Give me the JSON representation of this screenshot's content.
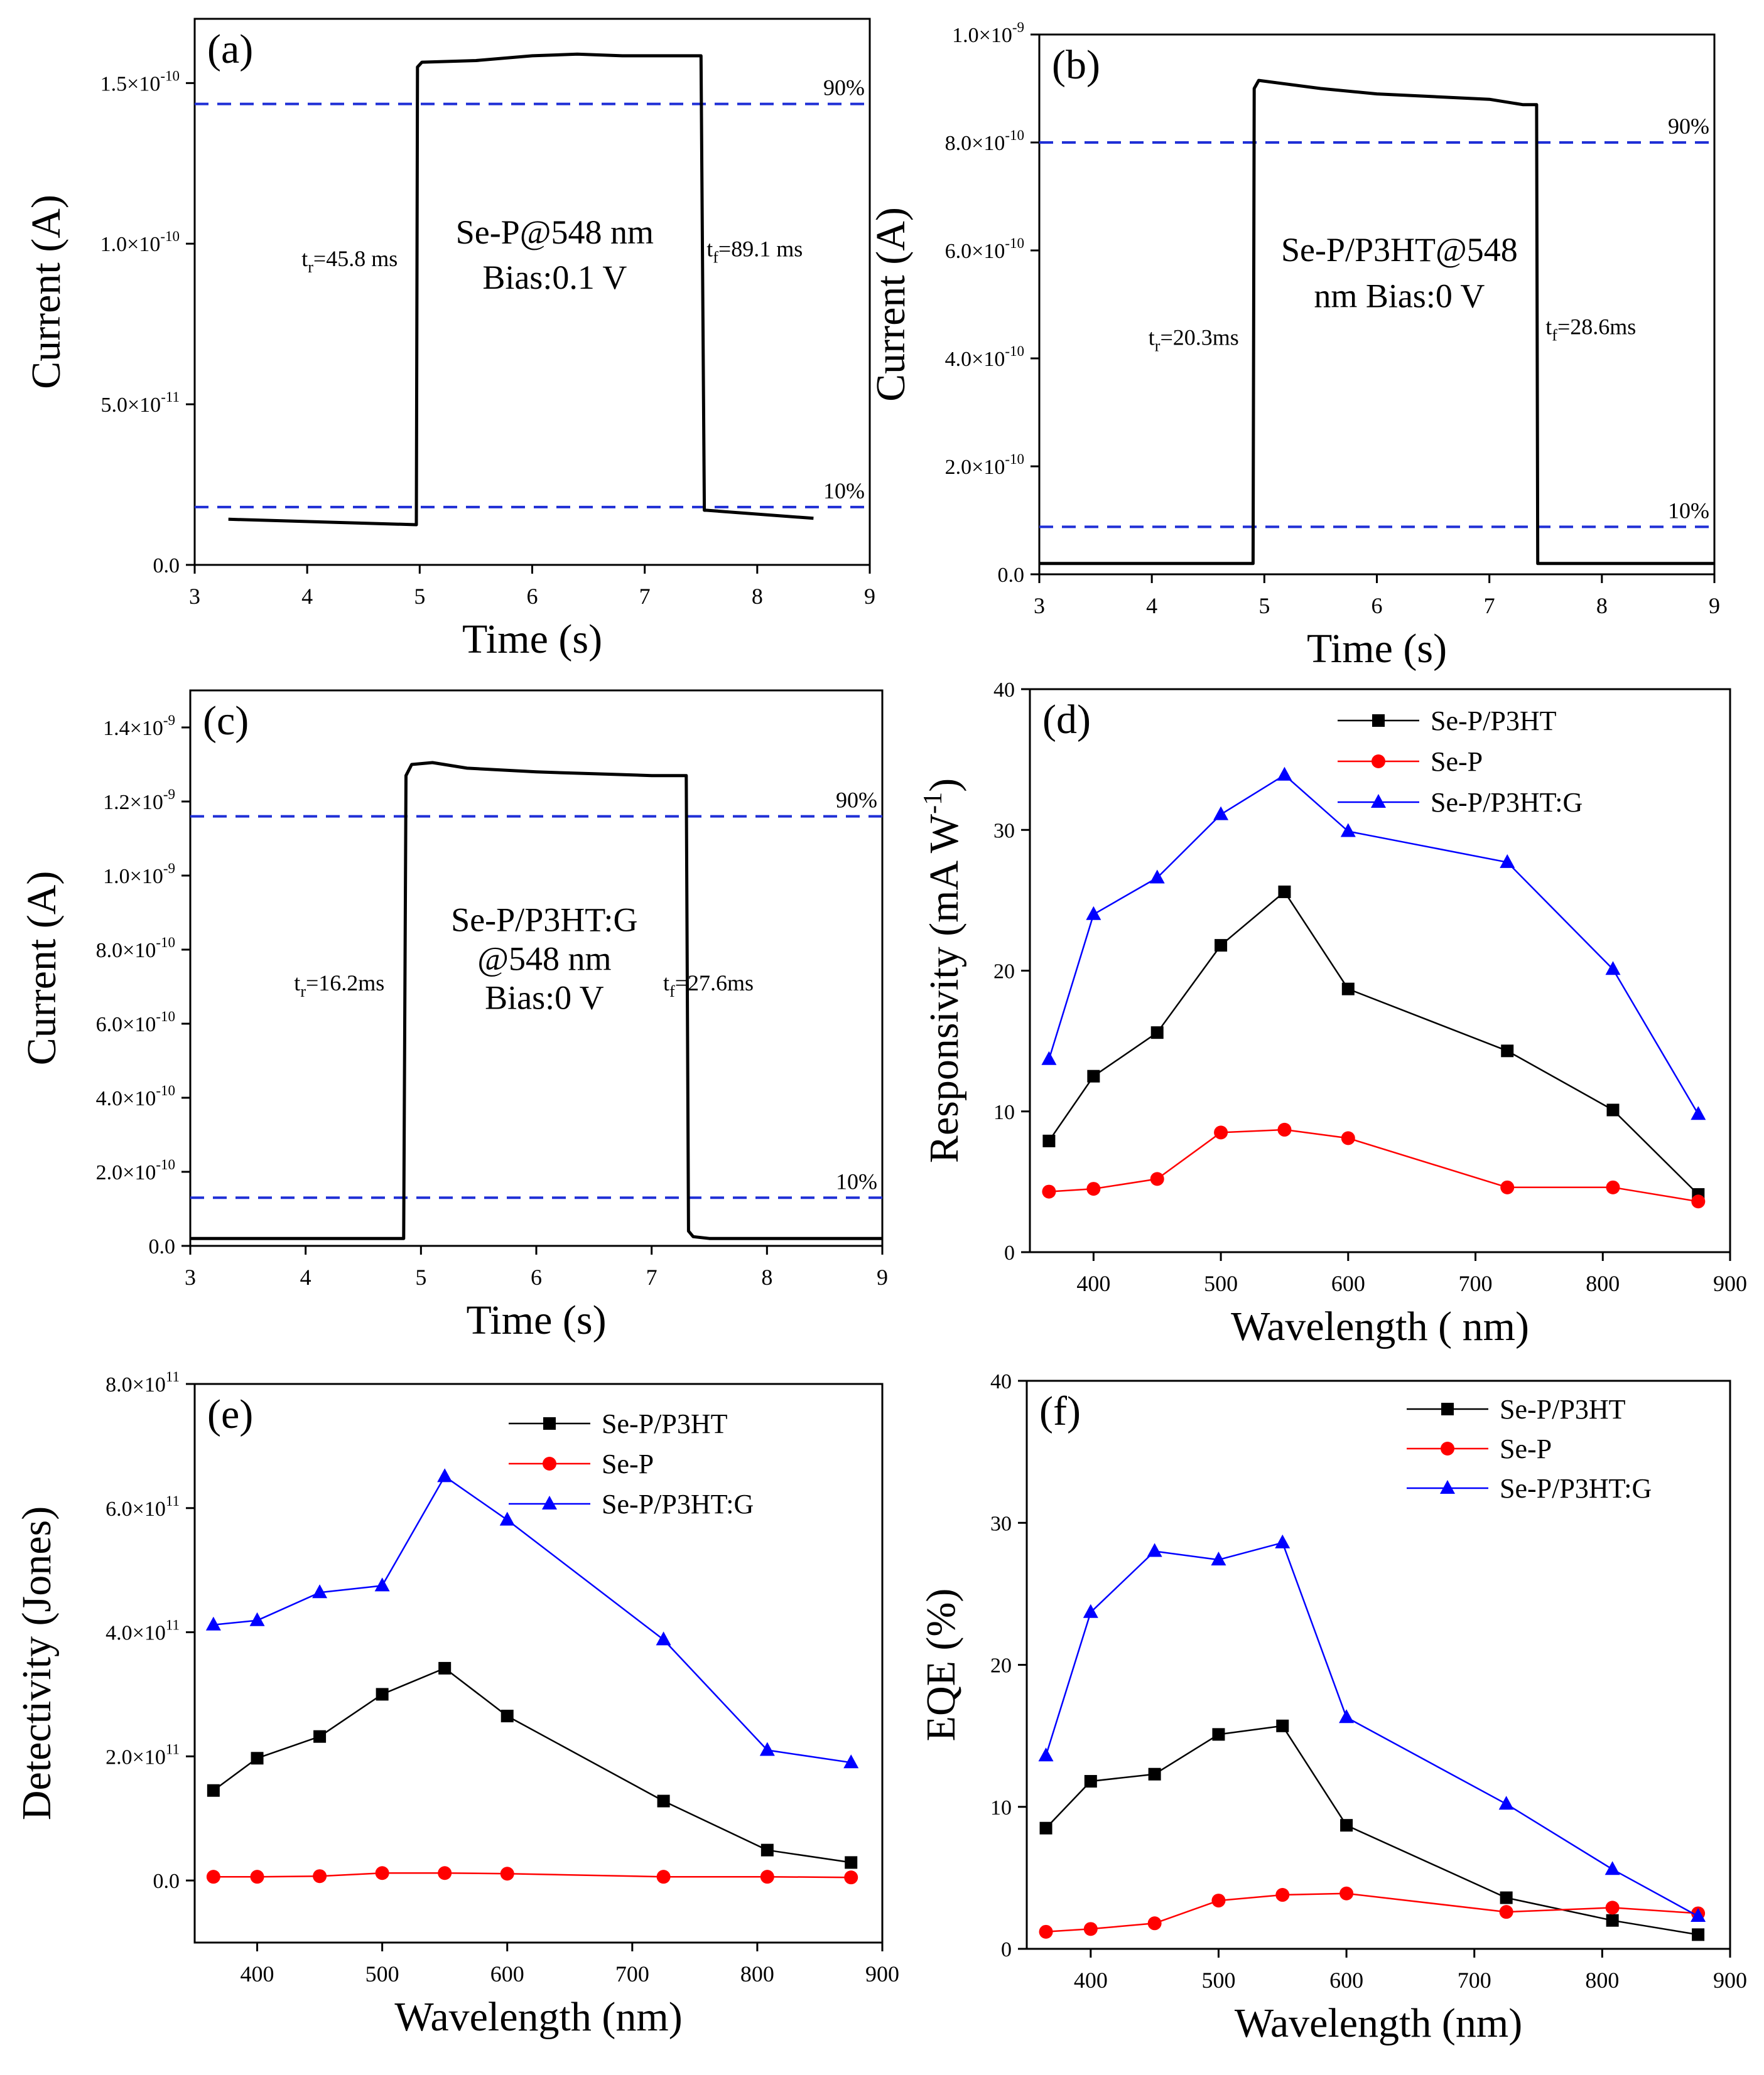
{
  "figure": {
    "colors": {
      "black": "#000000",
      "red": "#ff0000",
      "blue": "#0000ff",
      "ref_line": "#1f2fd6"
    }
  },
  "chart_data": [
    {
      "id": "a",
      "type": "line",
      "panel_label": "(a)",
      "xlabel": "Time (s)",
      "ylabel": "Current (A)",
      "xlim": [
        3,
        9
      ],
      "ylim": [
        0,
        1.7e-10
      ],
      "xticks": [
        3,
        4,
        5,
        6,
        7,
        8,
        9
      ],
      "yticks": [
        {
          "v": 0,
          "m": "0.0",
          "e": ""
        },
        {
          "v": 5e-11,
          "m": "5.0×10",
          "e": "-11"
        },
        {
          "v": 1e-10,
          "m": "1.0×10",
          "e": "-10"
        },
        {
          "v": 1.5e-10,
          "m": "1.5×10",
          "e": "-10"
        }
      ],
      "ref_lines": [
        {
          "value": 1.435e-10,
          "label": "90%"
        },
        {
          "value": 1.8e-11,
          "label": "10%"
        }
      ],
      "annotations": [
        {
          "text": "Se-P@548 nm",
          "x": 6.2,
          "y": 1e-10,
          "anchor": "middle",
          "size": 54
        },
        {
          "text": "Bias:0.1 V",
          "x": 6.2,
          "y": 8.6e-11,
          "anchor": "middle",
          "size": 54
        }
      ],
      "times": [
        {
          "sub": "r",
          "value": "=45.8 ms",
          "x": 3.95,
          "y": 9.3e-11
        },
        {
          "sub": "f",
          "value": "=89.1 ms",
          "x": 7.55,
          "y": 9.6e-11
        }
      ],
      "series": [
        {
          "name": "photocurrent",
          "color": "#000000",
          "x": [
            3.3,
            4.97,
            4.98,
            5.02,
            5.5,
            6.0,
            6.4,
            6.8,
            7.3,
            7.5,
            7.53,
            7.55,
            8.5
          ],
          "y": [
            1.42e-11,
            1.25e-11,
            1.55e-10,
            1.565e-10,
            1.57e-10,
            1.585e-10,
            1.59e-10,
            1.585e-10,
            1.585e-10,
            1.585e-10,
            1.7e-11,
            1.7e-11,
            1.45e-11
          ]
        }
      ]
    },
    {
      "id": "b",
      "type": "line",
      "panel_label": "(b)",
      "xlabel": "Time (s)",
      "ylabel": "Current (A)",
      "xlim": [
        3,
        9
      ],
      "ylim": [
        0,
        1e-09
      ],
      "xticks": [
        3,
        4,
        5,
        6,
        7,
        8,
        9
      ],
      "yticks": [
        {
          "v": 0,
          "m": "0.0",
          "e": ""
        },
        {
          "v": 2e-10,
          "m": "2.0×10",
          "e": "-10"
        },
        {
          "v": 4e-10,
          "m": "4.0×10",
          "e": "-10"
        },
        {
          "v": 6e-10,
          "m": "6.0×10",
          "e": "-10"
        },
        {
          "v": 8e-10,
          "m": "8.0×10",
          "e": "-10"
        },
        {
          "v": 1e-09,
          "m": "1.0×10",
          "e": "-9"
        }
      ],
      "ref_lines": [
        {
          "value": 8e-10,
          "label": "90%"
        },
        {
          "value": 8.8e-11,
          "label": "10%"
        }
      ],
      "annotations": [
        {
          "text": "Se-P/P3HT@548",
          "x": 6.2,
          "y": 5.8e-10,
          "anchor": "middle",
          "size": 54
        },
        {
          "text": "nm Bias:0 V",
          "x": 6.2,
          "y": 4.95e-10,
          "anchor": "middle",
          "size": 54
        }
      ],
      "times": [
        {
          "sub": "r",
          "value": "=20.3ms",
          "x": 3.97,
          "y": 4.25e-10
        },
        {
          "sub": "f",
          "value": "=28.6ms",
          "x": 7.5,
          "y": 4.45e-10
        }
      ],
      "series": [
        {
          "name": "photocurrent",
          "color": "#000000",
          "x": [
            3.0,
            4.9,
            4.91,
            4.95,
            5.5,
            6.0,
            6.5,
            7.0,
            7.3,
            7.42,
            7.43,
            9.0
          ],
          "y": [
            2e-11,
            2e-11,
            9e-10,
            9.15e-10,
            9e-10,
            8.9e-10,
            8.85e-10,
            8.8e-10,
            8.7e-10,
            8.7e-10,
            2e-11,
            2e-11
          ]
        }
      ]
    },
    {
      "id": "c",
      "type": "line",
      "panel_label": "(c)",
      "xlabel": "Time (s)",
      "ylabel": "Current (A)",
      "xlim": [
        3,
        9
      ],
      "ylim": [
        0,
        1.5e-09
      ],
      "xticks": [
        3,
        4,
        5,
        6,
        7,
        8,
        9
      ],
      "yticks": [
        {
          "v": 0,
          "m": "0.0",
          "e": ""
        },
        {
          "v": 2e-10,
          "m": "2.0×10",
          "e": "-10"
        },
        {
          "v": 4e-10,
          "m": "4.0×10",
          "e": "-10"
        },
        {
          "v": 6e-10,
          "m": "6.0×10",
          "e": "-10"
        },
        {
          "v": 8e-10,
          "m": "8.0×10",
          "e": "-10"
        },
        {
          "v": 1e-09,
          "m": "1.0×10",
          "e": "-9"
        },
        {
          "v": 1.2e-09,
          "m": "1.2×10",
          "e": "-9"
        },
        {
          "v": 1.4e-09,
          "m": "1.4×10",
          "e": "-9"
        }
      ],
      "ref_lines": [
        {
          "value": 1.16e-09,
          "label": "90%"
        },
        {
          "value": 1.3e-10,
          "label": "10%"
        }
      ],
      "annotations": [
        {
          "text": "Se-P/P3HT:G",
          "x": 6.07,
          "y": 8.5e-10,
          "anchor": "middle",
          "size": 54
        },
        {
          "text": "@548 nm",
          "x": 6.07,
          "y": 7.45e-10,
          "anchor": "middle",
          "size": 54
        },
        {
          "text": "Bias:0 V",
          "x": 6.07,
          "y": 6.4e-10,
          "anchor": "middle",
          "size": 54
        }
      ],
      "times": [
        {
          "sub": "r",
          "value": "=16.2ms",
          "x": 3.9,
          "y": 6.9e-10
        },
        {
          "sub": "f",
          "value": "=27.6ms",
          "x": 7.1,
          "y": 6.9e-10
        }
      ],
      "series": [
        {
          "name": "photocurrent",
          "color": "#000000",
          "x": [
            3.0,
            4.85,
            4.87,
            4.92,
            5.1,
            5.4,
            6.0,
            6.5,
            7.0,
            7.3,
            7.32,
            7.36,
            7.5,
            9.0
          ],
          "y": [
            2e-11,
            2e-11,
            1.27e-09,
            1.3e-09,
            1.305e-09,
            1.29e-09,
            1.28e-09,
            1.275e-09,
            1.27e-09,
            1.27e-09,
            4e-11,
            2.5e-11,
            2e-11,
            2e-11
          ]
        }
      ]
    },
    {
      "id": "d",
      "type": "line",
      "panel_label": "(d)",
      "xlabel": "Wavelength ( nm)",
      "ylabel": "Responsivity (mA W",
      "ylabel_sup": "-1",
      "ylabel_tail": ")",
      "xlim": [
        350,
        900
      ],
      "ylim": [
        0,
        40
      ],
      "xticks": [
        400,
        500,
        600,
        700,
        800,
        900
      ],
      "yticks": [
        {
          "v": 0,
          "m": "0",
          "e": ""
        },
        {
          "v": 10,
          "m": "10",
          "e": ""
        },
        {
          "v": 20,
          "m": "20",
          "e": ""
        },
        {
          "v": 30,
          "m": "30",
          "e": ""
        },
        {
          "v": 40,
          "m": "40",
          "e": ""
        }
      ],
      "x": [
        365,
        400,
        450,
        500,
        550,
        600,
        725,
        808,
        875
      ],
      "series": [
        {
          "name": "Se-P/P3HT",
          "marker": "square",
          "color": "#000000",
          "values": [
            7.9,
            12.5,
            15.6,
            21.8,
            25.6,
            18.7,
            14.3,
            10.1,
            4.1
          ]
        },
        {
          "name": "Se-P",
          "marker": "circle",
          "color": "#ff0000",
          "values": [
            4.3,
            4.5,
            5.2,
            8.5,
            8.7,
            8.1,
            4.6,
            4.6,
            3.6
          ]
        },
        {
          "name": "Se-P/P3HT:G",
          "marker": "triangle",
          "color": "#0000ff",
          "values": [
            13.7,
            24.0,
            26.6,
            31.1,
            33.9,
            29.9,
            27.7,
            20.1,
            9.8
          ]
        }
      ]
    },
    {
      "id": "e",
      "type": "line",
      "panel_label": "(e)",
      "xlabel": "Wavelength (nm)",
      "ylabel": "Detectivity (Jones)",
      "xlim": [
        350,
        900
      ],
      "ylim": [
        -100000000000.0,
        800000000000.0
      ],
      "xticks": [
        400,
        500,
        600,
        700,
        800,
        900
      ],
      "yticks": [
        {
          "v": 0,
          "m": "0.0",
          "e": ""
        },
        {
          "v": 200000000000.0,
          "m": "2.0×10",
          "e": "11"
        },
        {
          "v": 400000000000.0,
          "m": "4.0×10",
          "e": "11"
        },
        {
          "v": 600000000000.0,
          "m": "6.0×10",
          "e": "11"
        },
        {
          "v": 800000000000.0,
          "m": "8.0×10",
          "e": "11"
        }
      ],
      "x": [
        365,
        400,
        450,
        500,
        550,
        600,
        725,
        808,
        875
      ],
      "series": [
        {
          "name": "Se-P/P3HT",
          "marker": "square",
          "color": "#000000",
          "values": [
            145000000000.0,
            197000000000.0,
            232000000000.0,
            300000000000.0,
            342000000000.0,
            265000000000.0,
            128000000000.0,
            49000000000.0,
            29000000000.0
          ]
        },
        {
          "name": "Se-P",
          "marker": "circle",
          "color": "#ff0000",
          "values": [
            6000000000.0,
            6000000000.0,
            7000000000.0,
            12000000000.0,
            12000000000.0,
            11000000000.0,
            6000000000.0,
            6000000000.0,
            5000000000.0
          ]
        },
        {
          "name": "Se-P/P3HT:G",
          "marker": "triangle",
          "color": "#0000ff",
          "values": [
            412000000000.0,
            419000000000.0,
            464000000000.0,
            475000000000.0,
            651000000000.0,
            581000000000.0,
            388000000000.0,
            210000000000.0,
            190000000000.0
          ]
        }
      ]
    },
    {
      "id": "f",
      "type": "line",
      "panel_label": "(f)",
      "xlabel": "Wavelength (nm)",
      "ylabel": "EQE (%)",
      "xlim": [
        350,
        900
      ],
      "ylim": [
        0,
        40
      ],
      "xticks": [
        400,
        500,
        600,
        700,
        800,
        900
      ],
      "yticks": [
        {
          "v": 0,
          "m": "0",
          "e": ""
        },
        {
          "v": 10,
          "m": "10",
          "e": ""
        },
        {
          "v": 20,
          "m": "20",
          "e": ""
        },
        {
          "v": 30,
          "m": "30",
          "e": ""
        },
        {
          "v": 40,
          "m": "40",
          "e": ""
        }
      ],
      "x": [
        365,
        400,
        450,
        500,
        550,
        600,
        725,
        808,
        875
      ],
      "series": [
        {
          "name": "Se-P/P3HT",
          "marker": "square",
          "color": "#000000",
          "values": [
            8.5,
            11.8,
            12.3,
            15.1,
            15.7,
            8.7,
            3.6,
            2.0,
            1.0
          ]
        },
        {
          "name": "Se-P",
          "marker": "circle",
          "color": "#ff0000",
          "values": [
            1.2,
            1.4,
            1.8,
            3.4,
            3.8,
            3.9,
            2.6,
            2.9,
            2.5
          ]
        },
        {
          "name": "Se-P/P3HT:G",
          "marker": "triangle",
          "color": "#0000ff",
          "values": [
            13.6,
            23.7,
            28.0,
            27.4,
            28.6,
            16.3,
            10.2,
            5.6,
            2.3
          ]
        }
      ]
    }
  ]
}
